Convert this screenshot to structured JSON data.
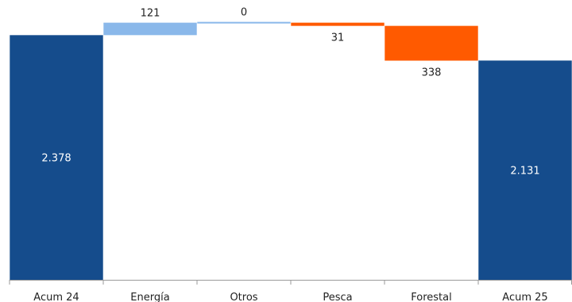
{
  "chart_data": {
    "type": "bar",
    "subtype": "waterfall",
    "categories": [
      "Acum 24",
      "Energía",
      "Otros",
      "Pesca",
      "Forestal",
      "Acum 25"
    ],
    "steps": [
      {
        "category": "Acum 24",
        "kind": "total",
        "value": 2378,
        "label": "2.378"
      },
      {
        "category": "Energía",
        "kind": "increase",
        "value": 121,
        "label": "121"
      },
      {
        "category": "Otros",
        "kind": "increase",
        "value": 0,
        "label": "0"
      },
      {
        "category": "Pesca",
        "kind": "decrease",
        "value": -31,
        "label": "31"
      },
      {
        "category": "Forestal",
        "kind": "decrease",
        "value": -338,
        "label": "338"
      },
      {
        "category": "Acum 25",
        "kind": "total",
        "value": 2131,
        "label": "2.131"
      }
    ],
    "ylim": [
      0,
      2550
    ],
    "colors": {
      "total": "#154c8c",
      "increase": "#8ab8ea",
      "decrease": "#ff5a00",
      "axis": "#9a9a9a"
    },
    "grid": false,
    "legend": "none"
  }
}
